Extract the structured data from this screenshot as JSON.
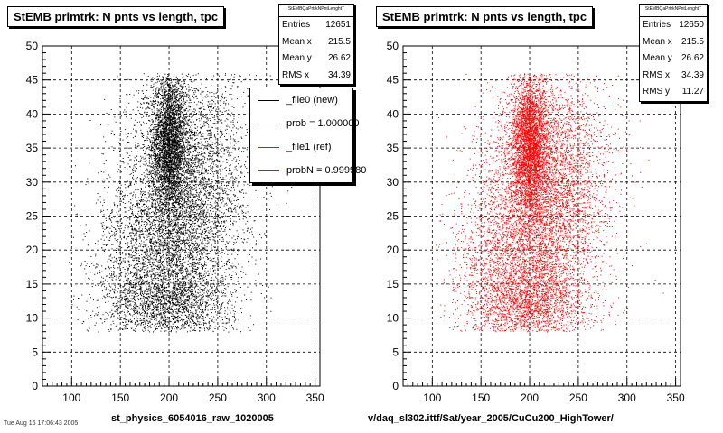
{
  "chart_data": [
    {
      "type": "scatter",
      "title": "StEMB primtrk: N pnts vs length, tpc",
      "xlabel": "st_physics_6054016_raw_1020005",
      "ylabel": "",
      "xlim": [
        70,
        355
      ],
      "ylim": [
        0,
        50
      ],
      "xticks": [
        100,
        150,
        200,
        250,
        300,
        350
      ],
      "yticks": [
        0,
        5,
        10,
        15,
        20,
        25,
        30,
        35,
        40,
        45,
        50
      ],
      "grid": true,
      "color": "#000000",
      "entries": 12651,
      "clusters": [
        {
          "x": 200,
          "y": 36,
          "sx": 9,
          "sy": 5,
          "n": 3200
        },
        {
          "x": 200,
          "y": 12,
          "sx": 32,
          "sy": 3,
          "n": 1600
        },
        {
          "x": 220,
          "y": 30,
          "sx": 32,
          "sy": 9,
          "n": 4200
        },
        {
          "x": 205,
          "y": 20,
          "sx": 25,
          "sy": 8,
          "n": 2000
        },
        {
          "x": 160,
          "y": 18,
          "sx": 22,
          "sy": 7,
          "n": 1000
        }
      ],
      "stats": {
        "title": "StEMBQaPrtrkNPntLenghtT",
        "rows": [
          {
            "label": "Entries",
            "value": "12651"
          },
          {
            "label": "Mean x",
            "value": "215.5"
          },
          {
            "label": "Mean y",
            "value": "26.62"
          },
          {
            "label": "RMS x",
            "value": "34.39"
          }
        ]
      },
      "legend": [
        {
          "label": "_file0 (new)",
          "color": "#000000"
        },
        {
          "label": "prob = 1.000000",
          "color": "#000000"
        },
        {
          "label": "_file1 (ref)",
          "color": "#ff0000"
        },
        {
          "label": "probN = 0.999980",
          "color": "#ff0000"
        }
      ]
    },
    {
      "type": "scatter",
      "title": "StEMB primtrk: N pnts vs length, tpc",
      "xlabel": "v/daq_sl302.ittf/Sat/year_2005/CuCu200_HighTower/",
      "ylabel": "",
      "xlim": [
        70,
        355
      ],
      "ylim": [
        0,
        50
      ],
      "xticks": [
        100,
        150,
        200,
        250,
        300,
        350
      ],
      "yticks": [
        0,
        5,
        10,
        15,
        20,
        25,
        30,
        35,
        40,
        45,
        50
      ],
      "grid": true,
      "color": "#ff0000",
      "entries": 12650,
      "clusters": [
        {
          "x": 200,
          "y": 36,
          "sx": 9,
          "sy": 5,
          "n": 3200
        },
        {
          "x": 200,
          "y": 12,
          "sx": 32,
          "sy": 3,
          "n": 1600
        },
        {
          "x": 220,
          "y": 30,
          "sx": 32,
          "sy": 9,
          "n": 4200
        },
        {
          "x": 205,
          "y": 20,
          "sx": 25,
          "sy": 8,
          "n": 2000
        },
        {
          "x": 160,
          "y": 18,
          "sx": 22,
          "sy": 7,
          "n": 1000
        }
      ],
      "stats": {
        "title": "StEMBQaPrtrkNPntLenghtT",
        "rows": [
          {
            "label": "Entries",
            "value": "12650"
          },
          {
            "label": "Mean x",
            "value": "215.5"
          },
          {
            "label": "Mean y",
            "value": "26.62"
          },
          {
            "label": "RMS x",
            "value": "34.39"
          },
          {
            "label": "RMS y",
            "value": "11.27"
          }
        ]
      }
    }
  ],
  "footer": "Tue Aug 16 17:06:43 2005"
}
